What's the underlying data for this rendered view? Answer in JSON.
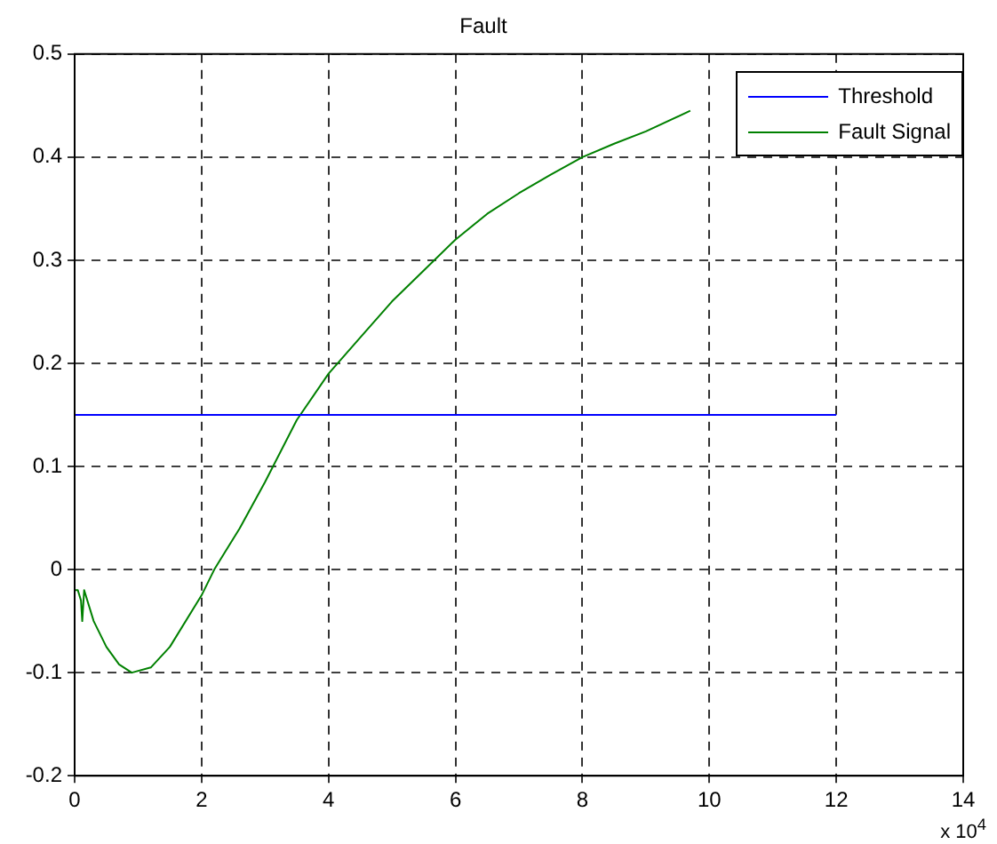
{
  "chart_data": {
    "type": "line",
    "title": "Fault",
    "annotations": [
      "x 10$^{4}$"
    ],
    "xlim": [
      0,
      14
    ],
    "xticks": [
      0,
      2,
      4,
      6,
      8,
      10,
      12,
      14
    ],
    "ylim": [
      -0.2,
      0.5
    ],
    "yticks": [
      -0.2,
      -0.1,
      0,
      0.1,
      0.2,
      0.3,
      0.4,
      0.5
    ],
    "grid": true,
    "legend": "top right",
    "marker": "none",
    "line_style": "solid",
    "series": [
      {
        "name": "Threshold",
        "color": "#0000ff",
        "x": [
          0,
          12
        ],
        "values": [
          0.15,
          0.15
        ]
      },
      {
        "name": "Fault Signal",
        "color": "#008000",
        "x": [
          0,
          0.05,
          0.1,
          0.12,
          0.15,
          0.3,
          0.5,
          0.7,
          0.9,
          1.2,
          1.5,
          2,
          2.2,
          2.6,
          3,
          3.5,
          4,
          4.5,
          5,
          5.5,
          6,
          6.5,
          7,
          7.5,
          8,
          8.5,
          9,
          9.7
        ],
        "values": [
          -0.02,
          -0.02,
          -0.03,
          -0.05,
          -0.02,
          -0.05,
          -0.075,
          -0.092,
          -0.1,
          -0.095,
          -0.075,
          -0.025,
          0,
          0.04,
          0.085,
          0.145,
          0.19,
          0.225,
          0.26,
          0.29,
          0.32,
          0.345,
          0.365,
          0.383,
          0.4,
          0.413,
          0.425,
          0.445
        ]
      }
    ]
  }
}
